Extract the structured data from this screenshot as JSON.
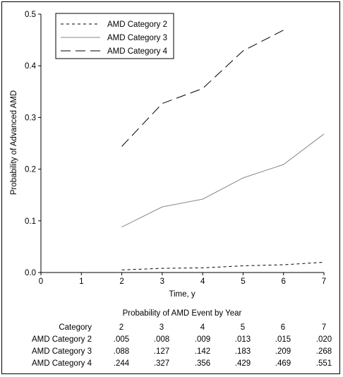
{
  "chart_data": {
    "type": "line",
    "title": "",
    "xlabel": "Time, y",
    "ylabel": "Probability of Advanced AMD",
    "xlim": [
      0,
      7
    ],
    "ylim": [
      0,
      0.5
    ],
    "x_ticks": [
      "0",
      "1",
      "2",
      "3",
      "4",
      "5",
      "6",
      "7"
    ],
    "y_ticks": [
      "0.0",
      "0.1",
      "0.2",
      "0.3",
      "0.4",
      "0.5"
    ],
    "grid": false,
    "legend_position": "top-left",
    "series": [
      {
        "name": "AMD Category 2",
        "dash": "short-dash",
        "x": [
          2,
          3,
          4,
          5,
          6,
          7
        ],
        "y": [
          0.005,
          0.008,
          0.009,
          0.013,
          0.015,
          0.02
        ]
      },
      {
        "name": "AMD Category 3",
        "dash": "solid",
        "x": [
          2,
          3,
          4,
          5,
          6,
          7
        ],
        "y": [
          0.088,
          0.127,
          0.142,
          0.183,
          0.209,
          0.268
        ]
      },
      {
        "name": "AMD Category 4",
        "dash": "long-dash",
        "x": [
          2,
          3,
          4,
          5,
          6
        ],
        "y": [
          0.244,
          0.327,
          0.356,
          0.429,
          0.469
        ]
      }
    ]
  },
  "table": {
    "title": "Probability of AMD Event by Year",
    "header": [
      "Category",
      "2",
      "3",
      "4",
      "5",
      "6",
      "7"
    ],
    "rows": [
      [
        "AMD Category 2",
        ".005",
        ".008",
        ".009",
        ".013",
        ".015",
        ".020"
      ],
      [
        "AMD Category 3",
        ".088",
        ".127",
        ".142",
        ".183",
        ".209",
        ".268"
      ],
      [
        "AMD Category 4",
        ".244",
        ".327",
        ".356",
        ".429",
        ".469",
        ".551"
      ]
    ]
  }
}
